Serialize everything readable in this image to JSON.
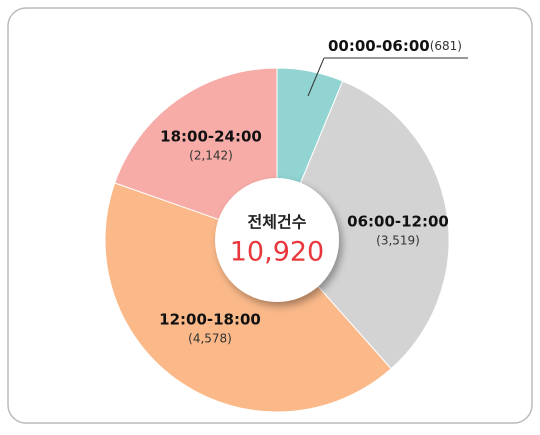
{
  "chart_data": {
    "type": "donut",
    "categories": [
      "00:00-06:00",
      "06:00-12:00",
      "12:00-18:00",
      "18:00-24:00"
    ],
    "values": [
      681,
      3519,
      4578,
      2142
    ],
    "value_labels": [
      "(681)",
      "(3,519)",
      "(4,578)",
      "(2,142)"
    ],
    "colors": [
      "#92d4d2",
      "#d3d3d3",
      "#fbb98a",
      "#f7aca7"
    ],
    "center": {
      "title": "전체건수",
      "value": 10920,
      "label": "10,920"
    }
  }
}
